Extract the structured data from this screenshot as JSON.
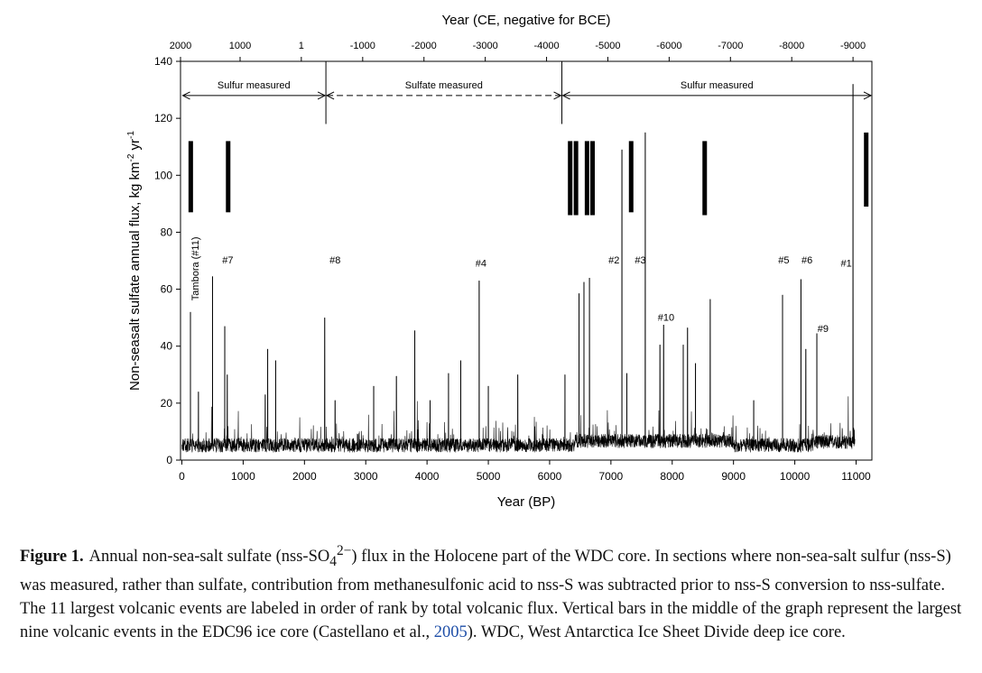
{
  "chart_data": {
    "type": "line",
    "xlabel": "Year (BP)",
    "ylabel": "Non-seasalt sulfate annual flux, kg km",
    "ylabel_sup1": "-2",
    "ylabel_mid": " yr",
    "ylabel_sup2": "-1",
    "top_axis_title": "Year (CE, negative for BCE)",
    "xlim": [
      0,
      11300
    ],
    "ylim": [
      0,
      140
    ],
    "x_ticks": [
      "0",
      "1000",
      "2000",
      "3000",
      "4000",
      "5000",
      "6000",
      "7000",
      "8000",
      "9000",
      "10000",
      "11000"
    ],
    "x_tick_values": [
      0,
      1000,
      2000,
      3000,
      4000,
      5000,
      6000,
      7000,
      8000,
      9000,
      10000,
      11000
    ],
    "y_ticks": [
      "0",
      "20",
      "40",
      "60",
      "80",
      "100",
      "120",
      "140"
    ],
    "y_tick_values": [
      0,
      20,
      40,
      60,
      80,
      100,
      120,
      140
    ],
    "top_ticks": [
      "2000",
      "1000",
      "1",
      "-1000",
      "-2000",
      "-3000",
      "-4000",
      "-5000",
      "-6000",
      "-7000",
      "-8000",
      "-9000"
    ],
    "top_tick_bp": [
      -50,
      950,
      1949,
      2950,
      3950,
      4950,
      5950,
      6950,
      7950,
      8950,
      9950,
      10950
    ],
    "sections": [
      {
        "label": "Sulfur measured",
        "start": 0,
        "end": 2350,
        "dashed": false
      },
      {
        "label": "Sulfate measured",
        "start": 2350,
        "end": 6200,
        "dashed": true
      },
      {
        "label": "Sulfur measured",
        "start": 6200,
        "end": 11300,
        "dashed": false
      }
    ],
    "section_boundaries": [
      2350,
      6200
    ],
    "section_arrow_y": 128,
    "edc96_bars": [
      {
        "x": 145,
        "y0": 87,
        "y1": 112
      },
      {
        "x": 755,
        "y0": 87,
        "y1": 112
      },
      {
        "x": 6335,
        "y0": 86,
        "y1": 112
      },
      {
        "x": 6430,
        "y0": 86,
        "y1": 112
      },
      {
        "x": 6610,
        "y0": 86,
        "y1": 112
      },
      {
        "x": 6700,
        "y0": 86,
        "y1": 112
      },
      {
        "x": 7330,
        "y0": 87,
        "y1": 112
      },
      {
        "x": 8530,
        "y0": 86,
        "y1": 112
      },
      {
        "x": 11165,
        "y0": 89,
        "y1": 115
      }
    ],
    "peaks": [
      [
        140,
        52
      ],
      [
        270,
        24
      ],
      [
        500,
        64.5
      ],
      [
        700,
        47
      ],
      [
        740,
        30
      ],
      [
        1360,
        23
      ],
      [
        1400,
        39
      ],
      [
        1530,
        35
      ],
      [
        2330,
        50
      ],
      [
        2500,
        21
      ],
      [
        3130,
        26
      ],
      [
        3500,
        29.5
      ],
      [
        3800,
        45.5
      ],
      [
        4050,
        21
      ],
      [
        4350,
        30.5
      ],
      [
        4550,
        35
      ],
      [
        4850,
        63
      ],
      [
        5000,
        26
      ],
      [
        5480,
        30
      ],
      [
        6250,
        30
      ],
      [
        6480,
        58.5
      ],
      [
        6560,
        62.5
      ],
      [
        6650,
        64
      ],
      [
        7180,
        109
      ],
      [
        7260,
        30.5
      ],
      [
        7560,
        115
      ],
      [
        7800,
        40.5
      ],
      [
        7860,
        47.5
      ],
      [
        8180,
        40.5
      ],
      [
        8250,
        46.5
      ],
      [
        8380,
        34
      ],
      [
        8620,
        56.5
      ],
      [
        9330,
        21
      ],
      [
        9800,
        58
      ],
      [
        10100,
        63.5
      ],
      [
        10180,
        39
      ],
      [
        10360,
        44.5
      ],
      [
        10950,
        132
      ]
    ],
    "volcanic_labels": [
      {
        "text": "#7",
        "x": 750,
        "y": 69
      },
      {
        "text": "#8",
        "x": 2500,
        "y": 69
      },
      {
        "text": "#4",
        "x": 4880,
        "y": 68
      },
      {
        "text": "#2",
        "x": 7050,
        "y": 69
      },
      {
        "text": "#3",
        "x": 7480,
        "y": 69
      },
      {
        "text": "#10",
        "x": 7900,
        "y": 49
      },
      {
        "text": "#5",
        "x": 9820,
        "y": 69
      },
      {
        "text": "#6",
        "x": 10200,
        "y": 69
      },
      {
        "text": "#9",
        "x": 10460,
        "y": 45
      },
      {
        "text": "#1",
        "x": 10840,
        "y": 68
      }
    ],
    "tambora_label": {
      "text": "Tambora (#11)",
      "x": 210,
      "y": 56
    }
  },
  "caption": {
    "label": "Figure 1.",
    "part1": "Annual non-sea-salt sulfate (nss-SO",
    "sub": "4",
    "sup": "2−",
    "part2": ") flux in the Holocene part of the WDC core. In sections where non-sea-salt sulfur (nss-S) was measured, rather than sulfate, contribution from methanesulfonic acid to nss-S was subtracted prior to nss-S conversion to nss-sulfate. The 11 largest volcanic events are labeled in order of rank by total volcanic flux. Vertical bars in the middle of the graph represent the largest nine volcanic events in the EDC96 ice core (Castellano et al., ",
    "citation": "2005",
    "part3": "). WDC, West Antarctica Ice Sheet Divide deep ice core."
  }
}
